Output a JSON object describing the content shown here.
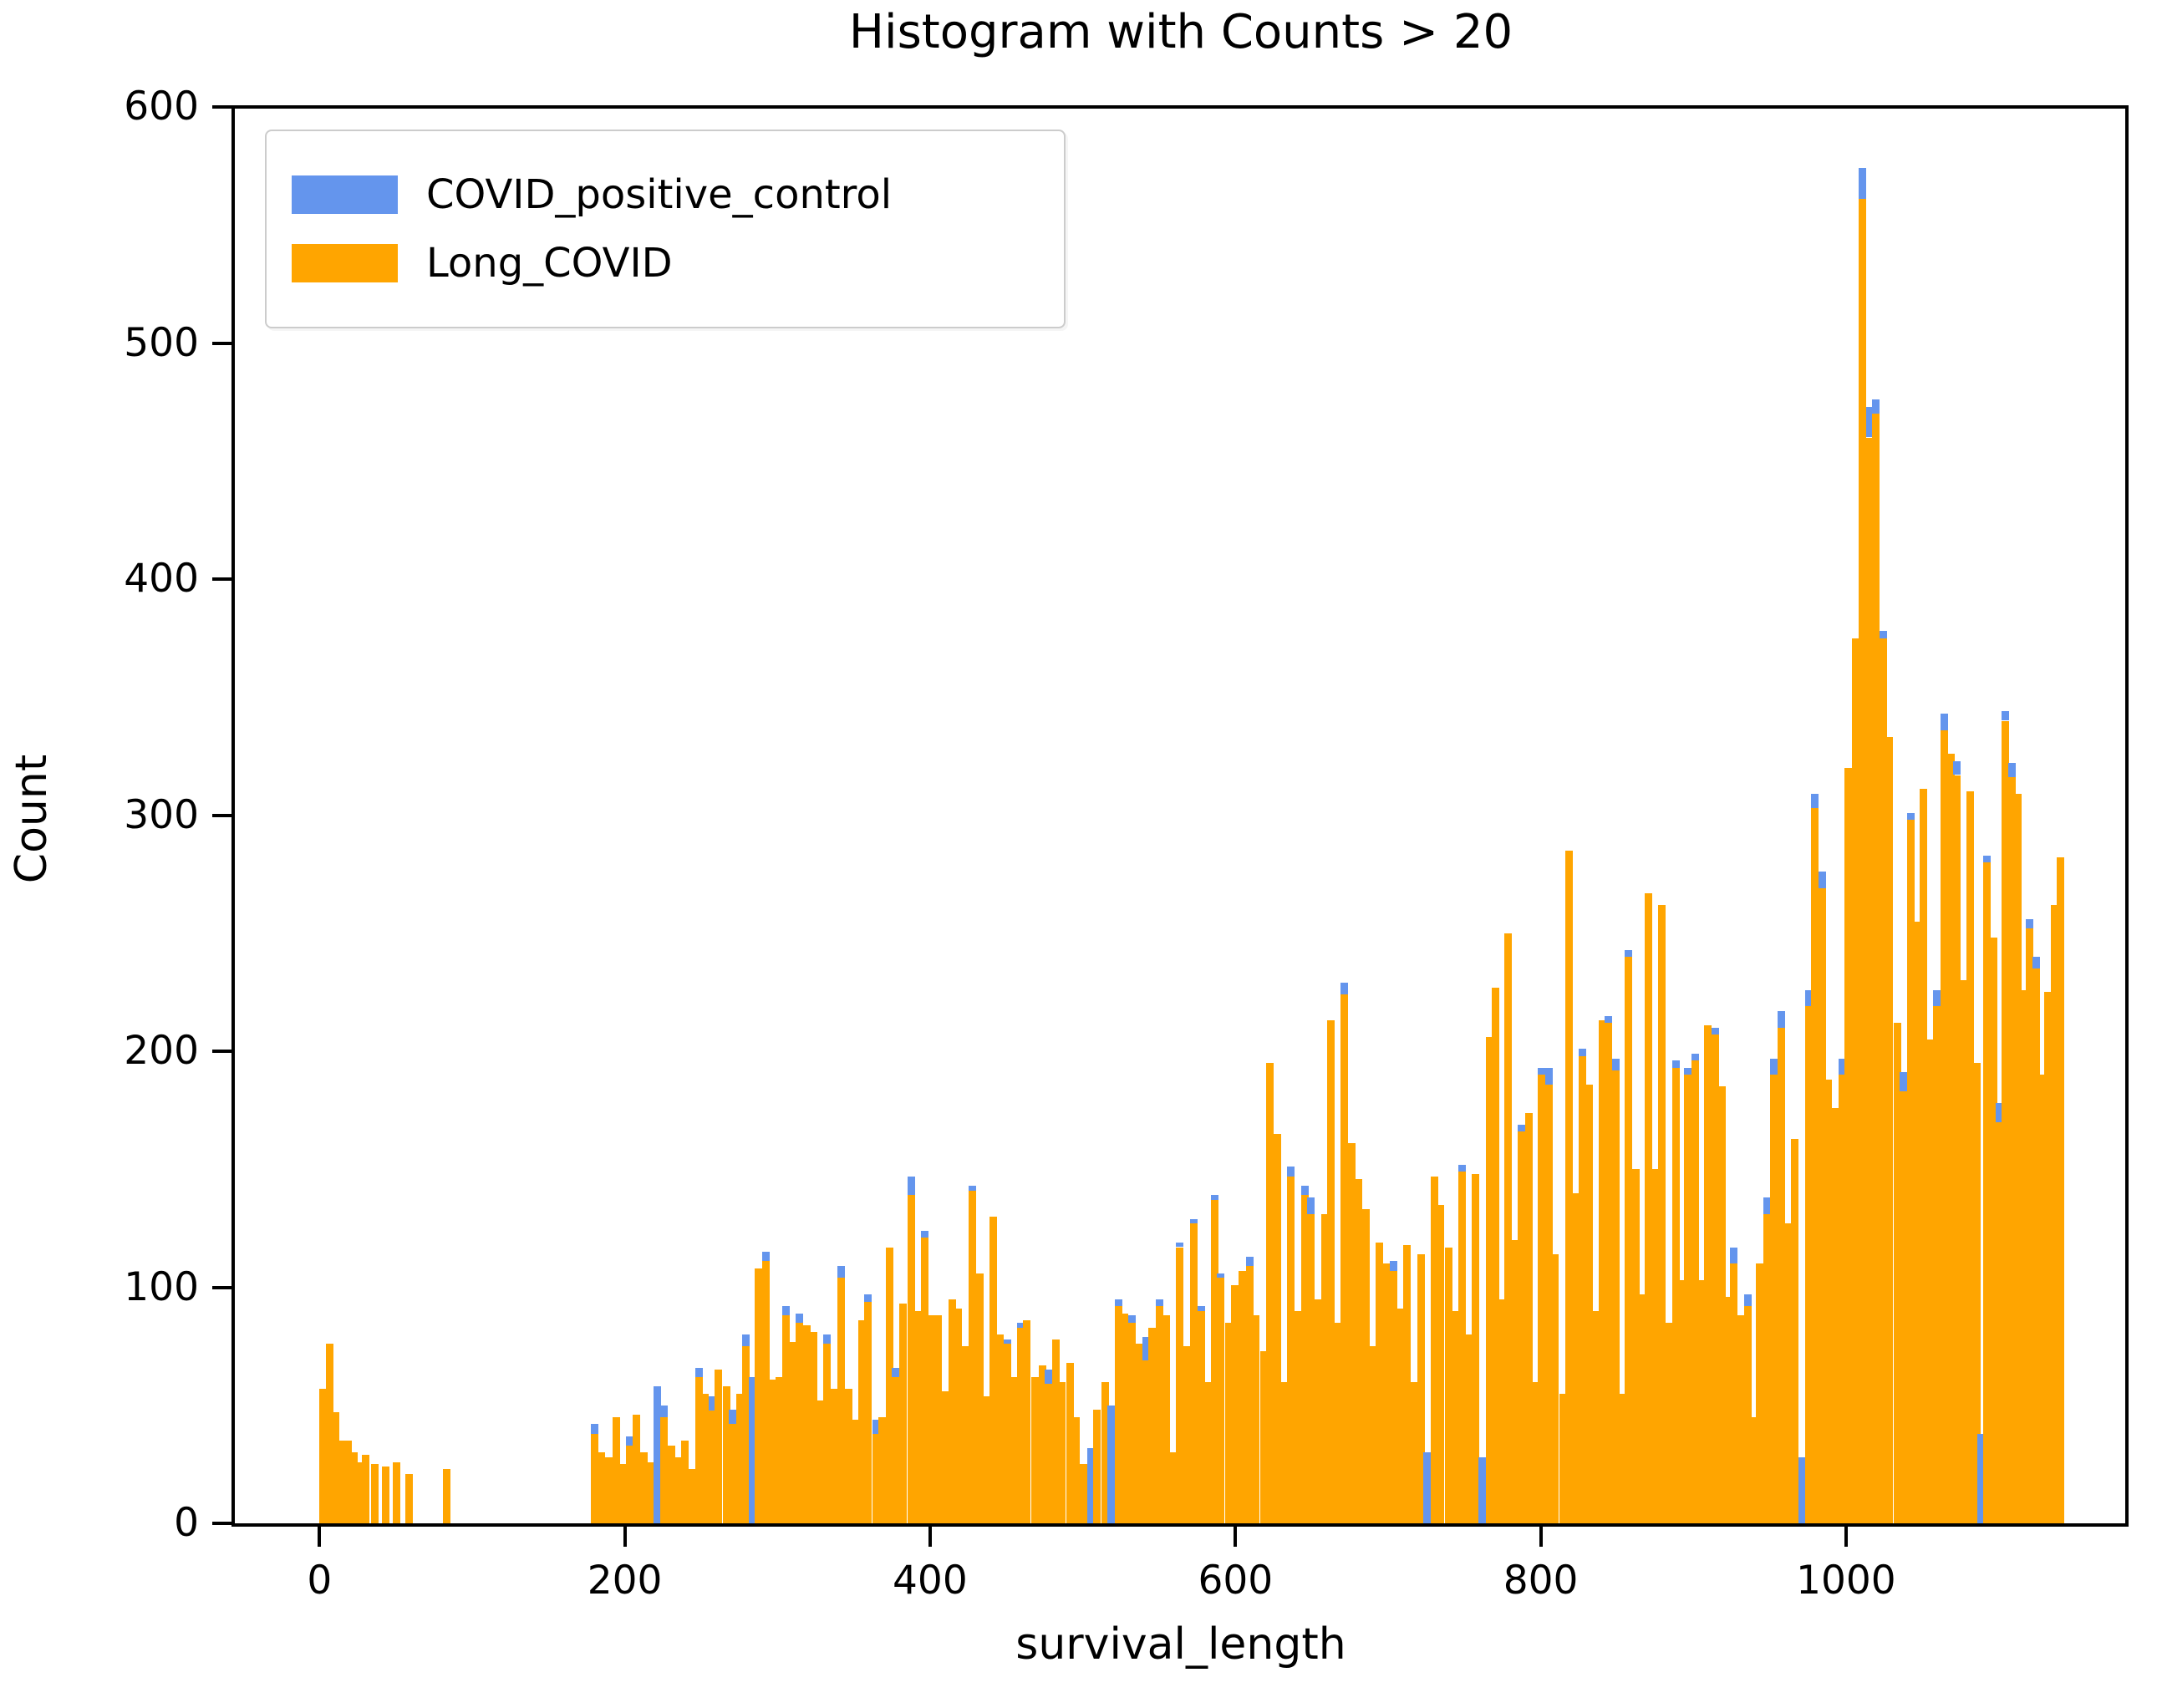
{
  "figure": {
    "title": "Histogram with Counts > 20",
    "xlabel": "survival_length",
    "ylabel": "Count"
  },
  "legend": {
    "items": [
      {
        "label": "COVID_positive_control",
        "color": "#6495ED"
      },
      {
        "label": "Long_COVID",
        "color": "#FFA500"
      }
    ]
  },
  "chart_data": {
    "type": "bar",
    "title": "Histogram with Counts > 20",
    "xlabel": "survival_length",
    "ylabel": "Count",
    "xlim": [
      -56,
      1184
    ],
    "ylim": [
      0,
      600
    ],
    "x_ticks": [
      0,
      200,
      400,
      600,
      800,
      1000
    ],
    "y_ticks": [
      0,
      100,
      200,
      300,
      400,
      500,
      600
    ],
    "grid": false,
    "legend_position": "upper left",
    "bin_width": 5,
    "note": "Stacked draw order: COVID_positive_control drawn behind Long_COVID; blue visible only where its count exceeds the orange count. Bars are [x, long_covid_count, covid_positive_control_count]; third value present only where blue is visible.",
    "series": [
      {
        "name": "COVID_positive_control",
        "color": "#6495ED"
      },
      {
        "name": "Long_COVID",
        "color": "#FFA500"
      }
    ],
    "bars": [
      [
        0,
        57
      ],
      [
        4,
        76
      ],
      [
        8,
        47
      ],
      [
        12,
        35
      ],
      [
        16,
        35
      ],
      [
        20,
        30
      ],
      [
        24,
        26
      ],
      [
        28,
        29
      ],
      [
        34,
        25
      ],
      [
        41,
        24
      ],
      [
        48,
        26
      ],
      [
        56,
        21
      ],
      [
        81,
        23
      ],
      [
        178,
        38,
        42
      ],
      [
        182,
        30
      ],
      [
        187,
        28
      ],
      [
        192,
        45
      ],
      [
        196,
        25
      ],
      [
        201,
        33,
        37
      ],
      [
        205,
        46
      ],
      [
        210,
        30
      ],
      [
        214,
        26
      ],
      [
        219,
        0,
        58
      ],
      [
        223,
        45,
        50
      ],
      [
        228,
        33
      ],
      [
        232,
        28
      ],
      [
        237,
        35
      ],
      [
        241,
        23
      ],
      [
        246,
        62,
        66
      ],
      [
        250,
        55
      ],
      [
        255,
        48,
        54
      ],
      [
        259,
        65
      ],
      [
        264,
        58
      ],
      [
        268,
        42,
        48
      ],
      [
        273,
        55
      ],
      [
        277,
        75,
        80
      ],
      [
        281,
        0,
        62
      ],
      [
        285,
        108
      ],
      [
        290,
        111,
        115
      ],
      [
        294,
        61
      ],
      [
        299,
        62
      ],
      [
        303,
        88,
        92
      ],
      [
        308,
        77
      ],
      [
        312,
        85,
        89
      ],
      [
        317,
        84
      ],
      [
        321,
        81
      ],
      [
        326,
        52
      ],
      [
        330,
        76,
        80
      ],
      [
        335,
        57
      ],
      [
        339,
        104,
        109
      ],
      [
        344,
        57
      ],
      [
        348,
        44
      ],
      [
        353,
        86
      ],
      [
        357,
        94,
        97
      ],
      [
        362,
        38,
        44
      ],
      [
        366,
        45
      ],
      [
        371,
        117
      ],
      [
        375,
        62,
        66
      ],
      [
        380,
        93
      ],
      [
        385,
        139,
        147
      ],
      [
        389,
        90
      ],
      [
        394,
        121,
        124
      ],
      [
        398,
        88
      ],
      [
        403,
        88
      ],
      [
        407,
        56
      ],
      [
        412,
        95
      ],
      [
        416,
        91
      ],
      [
        421,
        75
      ],
      [
        425,
        141,
        143
      ],
      [
        430,
        106
      ],
      [
        434,
        54
      ],
      [
        439,
        130
      ],
      [
        443,
        80
      ],
      [
        448,
        76,
        78
      ],
      [
        453,
        62
      ],
      [
        457,
        83,
        85
      ],
      [
        461,
        86
      ],
      [
        466,
        62
      ],
      [
        471,
        67
      ],
      [
        475,
        59,
        65
      ],
      [
        480,
        78
      ],
      [
        484,
        60
      ],
      [
        489,
        68
      ],
      [
        493,
        45
      ],
      [
        498,
        25
      ],
      [
        503,
        0,
        32
      ],
      [
        507,
        48
      ],
      [
        512,
        60
      ],
      [
        516,
        0,
        50
      ],
      [
        521,
        92,
        95
      ],
      [
        525,
        89
      ],
      [
        530,
        85,
        88
      ],
      [
        534,
        76
      ],
      [
        539,
        69,
        79
      ],
      [
        543,
        83
      ],
      [
        548,
        92,
        95
      ],
      [
        552,
        88
      ],
      [
        557,
        30
      ],
      [
        561,
        117,
        119
      ],
      [
        566,
        75
      ],
      [
        570,
        127,
        129
      ],
      [
        575,
        90,
        92
      ],
      [
        579,
        60
      ],
      [
        584,
        137,
        139
      ],
      [
        588,
        104,
        106
      ],
      [
        593,
        85
      ],
      [
        597,
        101
      ],
      [
        602,
        107
      ],
      [
        607,
        109,
        113
      ],
      [
        611,
        88
      ],
      [
        616,
        73
      ],
      [
        620,
        195
      ],
      [
        625,
        165
      ],
      [
        629,
        60
      ],
      [
        634,
        147,
        151
      ],
      [
        638,
        90
      ],
      [
        643,
        139,
        143
      ],
      [
        647,
        131,
        138
      ],
      [
        652,
        95
      ],
      [
        656,
        131
      ],
      [
        660,
        213
      ],
      [
        665,
        85
      ],
      [
        669,
        224,
        229
      ],
      [
        674,
        161
      ],
      [
        678,
        146
      ],
      [
        683,
        133
      ],
      [
        687,
        75
      ],
      [
        692,
        119
      ],
      [
        696,
        110
      ],
      [
        701,
        107,
        111
      ],
      [
        705,
        91
      ],
      [
        710,
        118
      ],
      [
        714,
        60
      ],
      [
        719,
        114
      ],
      [
        723,
        0,
        30
      ],
      [
        728,
        147
      ],
      [
        732,
        135
      ],
      [
        737,
        117
      ],
      [
        741,
        90
      ],
      [
        746,
        149,
        152
      ],
      [
        750,
        80
      ],
      [
        755,
        148
      ],
      [
        759,
        0,
        28
      ],
      [
        764,
        206
      ],
      [
        768,
        227
      ],
      [
        772,
        95
      ],
      [
        776,
        250
      ],
      [
        781,
        120
      ],
      [
        785,
        166,
        169
      ],
      [
        790,
        174
      ],
      [
        794,
        60
      ],
      [
        798,
        190,
        193
      ],
      [
        803,
        186,
        193
      ],
      [
        807,
        114
      ],
      [
        812,
        55
      ],
      [
        816,
        285
      ],
      [
        820,
        140
      ],
      [
        825,
        198,
        201
      ],
      [
        829,
        186
      ],
      [
        834,
        90
      ],
      [
        838,
        213
      ],
      [
        842,
        212,
        215
      ],
      [
        847,
        192,
        197
      ],
      [
        851,
        55
      ],
      [
        855,
        240,
        243
      ],
      [
        860,
        150
      ],
      [
        864,
        97
      ],
      [
        868,
        267
      ],
      [
        873,
        150
      ],
      [
        877,
        262
      ],
      [
        881,
        85
      ],
      [
        886,
        193,
        196
      ],
      [
        890,
        103
      ],
      [
        894,
        190,
        193
      ],
      [
        899,
        196,
        199
      ],
      [
        903,
        103
      ],
      [
        907,
        211
      ],
      [
        912,
        207,
        210
      ],
      [
        916,
        185
      ],
      [
        920,
        96
      ],
      [
        924,
        110,
        117
      ],
      [
        929,
        88
      ],
      [
        933,
        92,
        97
      ],
      [
        937,
        45
      ],
      [
        941,
        110
      ],
      [
        946,
        131,
        138
      ],
      [
        950,
        190,
        197
      ],
      [
        955,
        210,
        217
      ],
      [
        959,
        127
      ],
      [
        964,
        163
      ],
      [
        969,
        0,
        28
      ],
      [
        973,
        219,
        226
      ],
      [
        977,
        303,
        309
      ],
      [
        982,
        269,
        276
      ],
      [
        986,
        188
      ],
      [
        990,
        176
      ],
      [
        995,
        190,
        197
      ],
      [
        999,
        320
      ],
      [
        1004,
        375
      ],
      [
        1008,
        561,
        574
      ],
      [
        1013,
        460,
        473
      ],
      [
        1017,
        470,
        476
      ],
      [
        1022,
        375,
        378
      ],
      [
        1026,
        333
      ],
      [
        1031,
        212
      ],
      [
        1035,
        183,
        191
      ],
      [
        1040,
        298,
        301
      ],
      [
        1044,
        255
      ],
      [
        1048,
        311
      ],
      [
        1053,
        205
      ],
      [
        1057,
        219,
        226
      ],
      [
        1062,
        336,
        343
      ],
      [
        1066,
        326
      ],
      [
        1070,
        317,
        323
      ],
      [
        1075,
        230
      ],
      [
        1079,
        310
      ],
      [
        1083,
        195
      ],
      [
        1086,
        0,
        38
      ],
      [
        1090,
        280,
        283
      ],
      [
        1094,
        248
      ],
      [
        1098,
        170,
        178
      ],
      [
        1102,
        340,
        344
      ],
      [
        1106,
        316,
        322
      ],
      [
        1110,
        309
      ],
      [
        1114,
        226
      ],
      [
        1118,
        252,
        256
      ],
      [
        1122,
        235,
        240
      ],
      [
        1126,
        190
      ],
      [
        1130,
        225
      ],
      [
        1134,
        262
      ],
      [
        1138,
        282
      ]
    ]
  }
}
